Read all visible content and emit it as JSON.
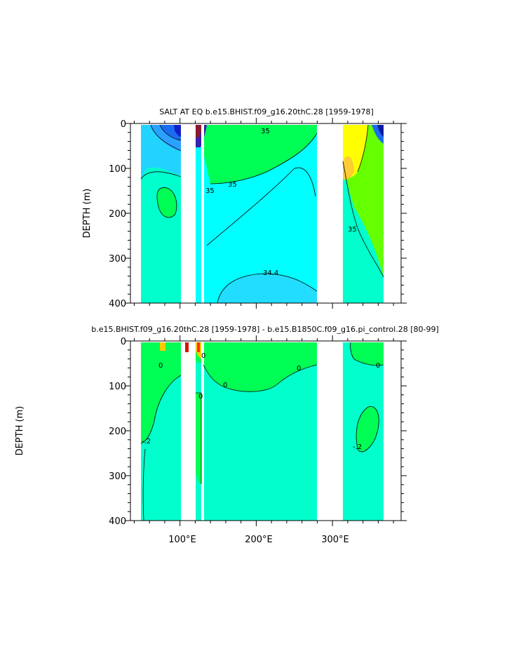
{
  "chart_data": [
    {
      "type": "heatmap",
      "title": "SALT AT EQ  b.e15.BHIST.f09_g16.20thC.28  [1959-1978]",
      "ylabel": "DEPTH  (m)",
      "xlabel": "",
      "xlim": [
        35,
        390
      ],
      "ylim": [
        400,
        0
      ],
      "x_ticks": [],
      "y_ticks": [
        "0",
        "100",
        "200",
        "300",
        "400"
      ],
      "contour_labels": [
        "35",
        "35",
        "35",
        "34.4",
        "35"
      ],
      "land_gaps_lon": [
        [
          98,
          118
        ],
        [
          277,
          315
        ]
      ],
      "colors": {
        "low": "#1a2bd8",
        "mid": "#22d3ff",
        "base": "#00fff0",
        "high": "#00ff55",
        "higher": "#66ff00",
        "peak": "#ffff00"
      }
    },
    {
      "type": "heatmap",
      "title": "b.e15.BHIST.f09_g16.20thC.28  [1959-1978]  -  b.e15.B1850C.f09_g16.pi_control.28  [80-99]",
      "ylabel": "DEPTH  (m)",
      "xlabel": "",
      "xlim": [
        35,
        390
      ],
      "ylim": [
        400,
        0
      ],
      "x_ticks": [
        "100°E",
        "200°E",
        "300°E"
      ],
      "y_ticks": [
        "0",
        "100",
        "200",
        "300",
        "400"
      ],
      "contour_labels": [
        "0",
        "0",
        "-.2",
        "0",
        "0",
        "-.2",
        "0",
        "0"
      ],
      "land_gaps_lon": [
        [
          98,
          118
        ],
        [
          277,
          315
        ]
      ],
      "colors": {
        "base": "#00ffcc",
        "pos": "#00ff55",
        "warm": "#ff3300",
        "hot": "#ffcc00"
      }
    }
  ]
}
